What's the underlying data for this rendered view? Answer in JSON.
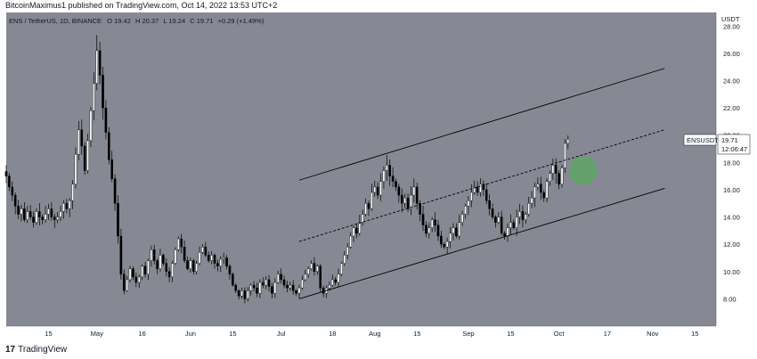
{
  "header": {
    "text": "BitcoinMaximus1 published on TradingView.com, Oct 14, 2022 13:53 UTC+2"
  },
  "footer": {
    "logo": "17",
    "brand": "TradingView"
  },
  "colors": {
    "plot_bg": "#868993",
    "up_body": "#ffffff",
    "down_body": "#000000",
    "wick": "#000000",
    "channel": "#000000",
    "highlight": "#4caf50",
    "badge_bg": "#ffffff"
  },
  "chart_data": {
    "type": "candlestick",
    "symbol": "ENS / TetherUS, 1D, BINANCE",
    "ohlc": {
      "o_label": "O",
      "o": "19.42",
      "h_label": "H",
      "h": "20.37",
      "l_label": "L",
      "l": "19.24",
      "c_label": "C",
      "c": "19.71",
      "change": "+0.29 (+1.49%)"
    },
    "price_axis_unit": "USDT",
    "y_ticks": [
      "8.00",
      "10.00",
      "12.00",
      "14.00",
      "16.00",
      "18.00",
      "20.00",
      "22.00",
      "24.00",
      "26.00",
      "28.00"
    ],
    "x_ticks": [
      "15",
      "May",
      "16",
      "Jun",
      "15",
      "Jul",
      "18",
      "Aug",
      "15",
      "Sep",
      "15",
      "Oct",
      "17",
      "Nov",
      "15"
    ],
    "ylim": [
      6.0,
      29.0
    ],
    "grid": false,
    "last_price": {
      "label": "ENSUSDT",
      "price": "19.71",
      "countdown": "12:06:47"
    },
    "date_range": [
      "2022-04-01",
      "2022-11-22"
    ],
    "candles_close": [
      17.0,
      16.2,
      15.6,
      14.8,
      14.2,
      14.6,
      13.8,
      14.4,
      14.0,
      13.6,
      14.4,
      14.0,
      13.8,
      14.2,
      14.6,
      14.0,
      13.8,
      14.0,
      14.4,
      15.0,
      14.6,
      15.2,
      16.4,
      18.6,
      20.4,
      19.2,
      17.4,
      19.6,
      21.8,
      23.8,
      26.2,
      24.4,
      22.0,
      20.2,
      18.2,
      16.8,
      15.0,
      12.6,
      9.8,
      8.6,
      9.4,
      10.2,
      9.6,
      9.2,
      9.6,
      10.4,
      9.8,
      10.8,
      11.6,
      10.8,
      10.2,
      11.2,
      10.6,
      10.0,
      9.6,
      10.6,
      11.6,
      12.4,
      11.8,
      10.8,
      10.2,
      10.8,
      10.0,
      10.6,
      11.4,
      11.8,
      11.2,
      10.8,
      11.2,
      10.6,
      10.4,
      10.9,
      11.0,
      10.4,
      9.8,
      9.0,
      8.6,
      8.2,
      8.6,
      8.0,
      8.6,
      9.0,
      8.8,
      8.4,
      9.2,
      9.0,
      9.4,
      8.9,
      8.4,
      9.2,
      9.8,
      9.4,
      9.0,
      8.8,
      9.0,
      8.6,
      8.4,
      8.8,
      9.4,
      9.8,
      10.2,
      10.6,
      10.0,
      10.4,
      8.8,
      8.4,
      8.8,
      9.0,
      9.4,
      9.2,
      9.8,
      10.6,
      11.2,
      11.8,
      12.6,
      13.2,
      12.8,
      13.6,
      14.2,
      15.0,
      14.6,
      15.8,
      16.2,
      15.6,
      16.6,
      17.4,
      17.8,
      17.0,
      16.6,
      16.2,
      15.6,
      15.0,
      15.4,
      14.6,
      15.6,
      16.2,
      15.0,
      14.2,
      13.4,
      12.8,
      13.2,
      13.8,
      13.4,
      12.6,
      12.0,
      11.8,
      12.2,
      12.8,
      13.2,
      12.6,
      13.6,
      14.2,
      14.8,
      15.2,
      15.8,
      16.2,
      15.8,
      16.4,
      16.0,
      15.2,
      14.6,
      14.0,
      13.6,
      14.0,
      12.8,
      12.6,
      13.2,
      13.6,
      13.2,
      14.0,
      14.4,
      13.8,
      14.2,
      15.0,
      15.4,
      16.2,
      16.4,
      15.8,
      15.4,
      16.6,
      17.2,
      17.8,
      17.2,
      16.4,
      17.6,
      19.4,
      19.71
    ],
    "channel_lines": [
      {
        "name": "upper",
        "style": "solid",
        "from": [
          "2022-07-07",
          16.7
        ],
        "to": [
          "2022-11-05",
          24.9
        ]
      },
      {
        "name": "middle",
        "style": "dashed",
        "from": [
          "2022-07-07",
          12.2
        ],
        "to": [
          "2022-11-05",
          20.4
        ]
      },
      {
        "name": "lower",
        "style": "solid",
        "from": [
          "2022-07-07",
          8.0
        ],
        "to": [
          "2022-11-05",
          16.1
        ]
      }
    ],
    "highlight_circle": {
      "date": "2022-10-09",
      "price": 17.4
    }
  }
}
